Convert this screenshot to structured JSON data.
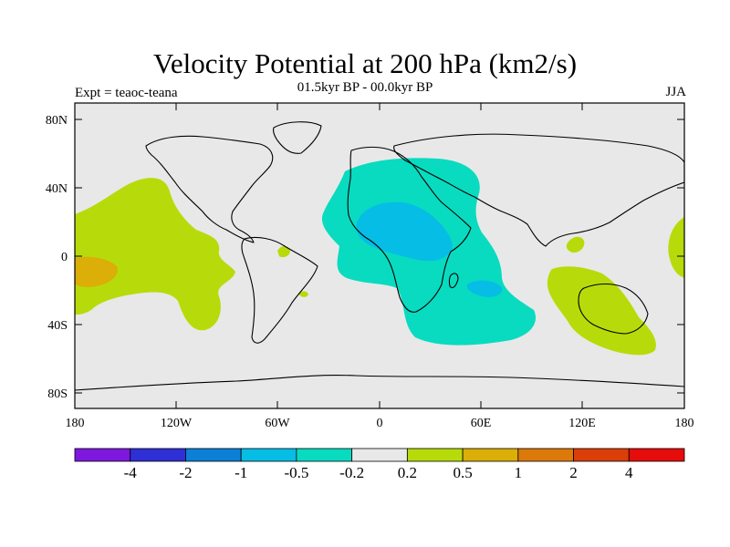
{
  "title": "Velocity Potential at 200 hPa (km2/s)",
  "subtitle": "01.5kyr BP - 00.0kyr BP",
  "left_label": "Expt = teaoc-teana",
  "right_label": "JJA",
  "lat_ticks": [
    "80N",
    "40N",
    "0",
    "40S",
    "80S"
  ],
  "lon_ticks": [
    "180",
    "120W",
    "60W",
    "0",
    "60E",
    "120E",
    "180"
  ],
  "colorbar": {
    "colors": [
      "#7f18de",
      "#2f2fd6",
      "#0c7fd6",
      "#06bde6",
      "#08dbc0",
      "#e8e8e8",
      "#b7db0a",
      "#dbae08",
      "#db7a0a",
      "#db3e08",
      "#e60c0c"
    ],
    "labels": [
      "-4",
      "-2",
      "-1",
      "-0.5",
      "-0.2",
      "0.2",
      "0.5",
      "1",
      "2",
      "4"
    ]
  },
  "colors": {
    "land_sea_background": "#e8e8e8",
    "negative_light": "#08dbc0",
    "negative_mid": "#06bde6",
    "positive_light": "#b7db0a",
    "positive_mid": "#dbae08"
  }
}
